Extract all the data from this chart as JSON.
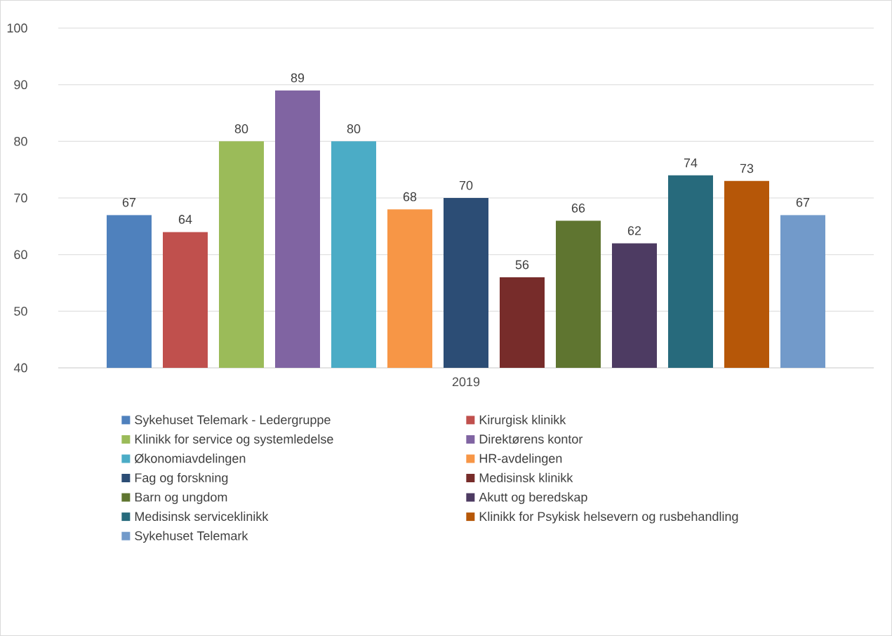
{
  "chart_data": {
    "type": "bar",
    "categories": [
      "2019"
    ],
    "ylim": [
      40,
      100
    ],
    "yticks": [
      40,
      50,
      60,
      70,
      80,
      90,
      100
    ],
    "grid": "y",
    "legend": "bottom",
    "data_labels": true,
    "series": [
      {
        "name": "Sykehuset Telemark - Ledergruppe",
        "color": "#4f81bd",
        "values": [
          67
        ]
      },
      {
        "name": "Kirurgisk klinikk",
        "color": "#c0504d",
        "values": [
          64
        ]
      },
      {
        "name": "Klinikk for service og systemledelse",
        "color": "#9bbb59",
        "values": [
          80
        ]
      },
      {
        "name": "Direktørens kontor",
        "color": "#8064a2",
        "values": [
          89
        ]
      },
      {
        "name": "Økonomiavdelingen",
        "color": "#4bacc6",
        "values": [
          80
        ]
      },
      {
        "name": "HR-avdelingen",
        "color": "#f79646",
        "values": [
          68
        ]
      },
      {
        "name": "Fag og forskning",
        "color": "#2c4d75",
        "values": [
          70
        ]
      },
      {
        "name": "Medisinsk klinikk",
        "color": "#772c2a",
        "values": [
          56
        ]
      },
      {
        "name": "Barn og ungdom",
        "color": "#5f7530",
        "values": [
          66
        ]
      },
      {
        "name": "Akutt og beredskap",
        "color": "#4d3b62",
        "values": [
          62
        ]
      },
      {
        "name": "Medisinsk serviceklinikk",
        "color": "#276a7c",
        "values": [
          74
        ]
      },
      {
        "name": "Klinikk for Psykisk helsevern og rusbehandling",
        "color": "#b65708",
        "values": [
          73
        ]
      },
      {
        "name": "Sykehuset Telemark",
        "color": "#729aca",
        "values": [
          67
        ]
      }
    ]
  }
}
